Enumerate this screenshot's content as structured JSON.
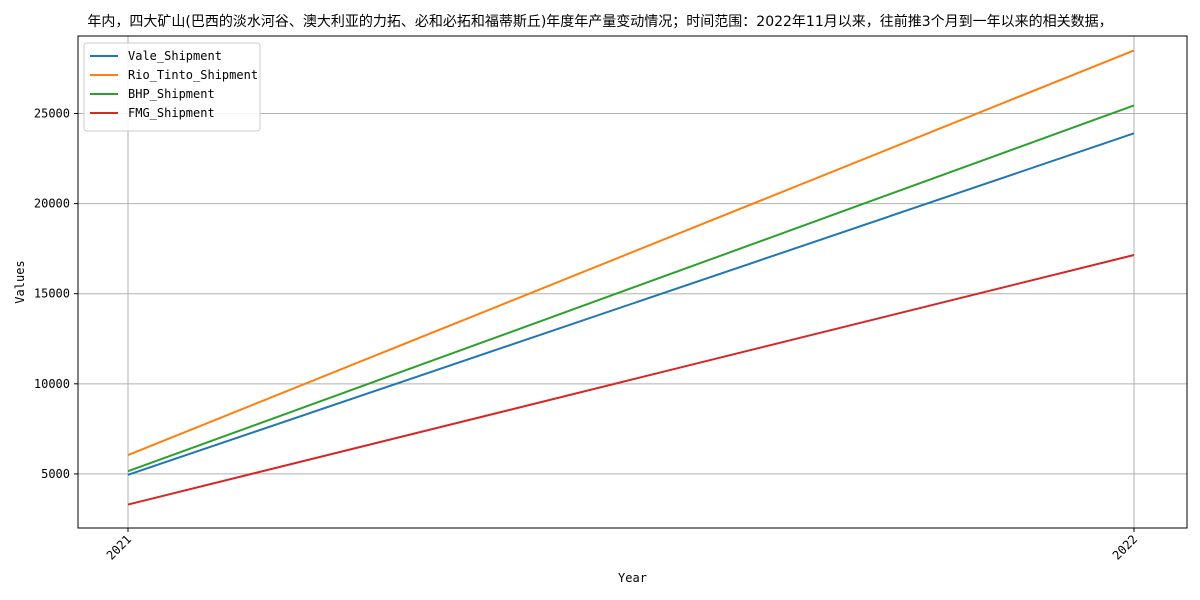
{
  "chart_data": {
    "type": "line",
    "title": "年内，四大矿山(巴西的淡水河谷、澳大利亚的力拓、必和必拓和福蒂斯丘)年度年产量变动情况；时间范围：2022年11月以来，往前推3个月到一年以来的相关数据，",
    "xlabel": "Year",
    "ylabel": "Values",
    "x": [
      "2021",
      "2022"
    ],
    "ylim": [
      2000,
      29300
    ],
    "yticks": [
      5000,
      10000,
      15000,
      20000,
      25000
    ],
    "grid": true,
    "legend_position": "top-left",
    "series": [
      {
        "name": "Vale_Shipment",
        "color": "#1f77b4",
        "values": [
          4950,
          23900
        ]
      },
      {
        "name": "Rio_Tinto_Shipment",
        "color": "#ff7f0e",
        "values": [
          6050,
          28500
        ]
      },
      {
        "name": "BHP_Shipment",
        "color": "#2ca02c",
        "values": [
          5150,
          25450
        ]
      },
      {
        "name": "FMG_Shipment",
        "color": "#d62728",
        "values": [
          3300,
          17150
        ]
      }
    ]
  }
}
